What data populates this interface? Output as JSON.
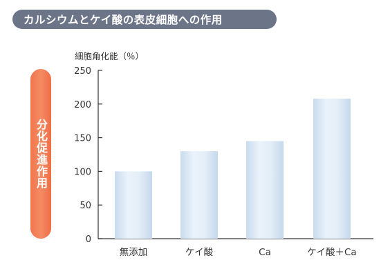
{
  "header": {
    "title": "カルシウムとケイ酸の表皮細胞への作用"
  },
  "side_label": "分化促進作用",
  "chart_data": {
    "type": "bar",
    "title": "カルシウムとケイ酸の表皮細胞への作用",
    "xlabel": "",
    "ylabel": "細胞角化能（％）",
    "categories": [
      "無添加",
      "ケイ酸",
      "Ca",
      "ケイ酸＋Ca"
    ],
    "values": [
      100,
      130,
      145,
      208
    ],
    "ylim": [
      0,
      250
    ],
    "yticks": [
      0,
      50,
      100,
      150,
      200,
      250
    ],
    "grid": false,
    "bar_color": "#dce8f4",
    "axis_color": "#333333"
  }
}
